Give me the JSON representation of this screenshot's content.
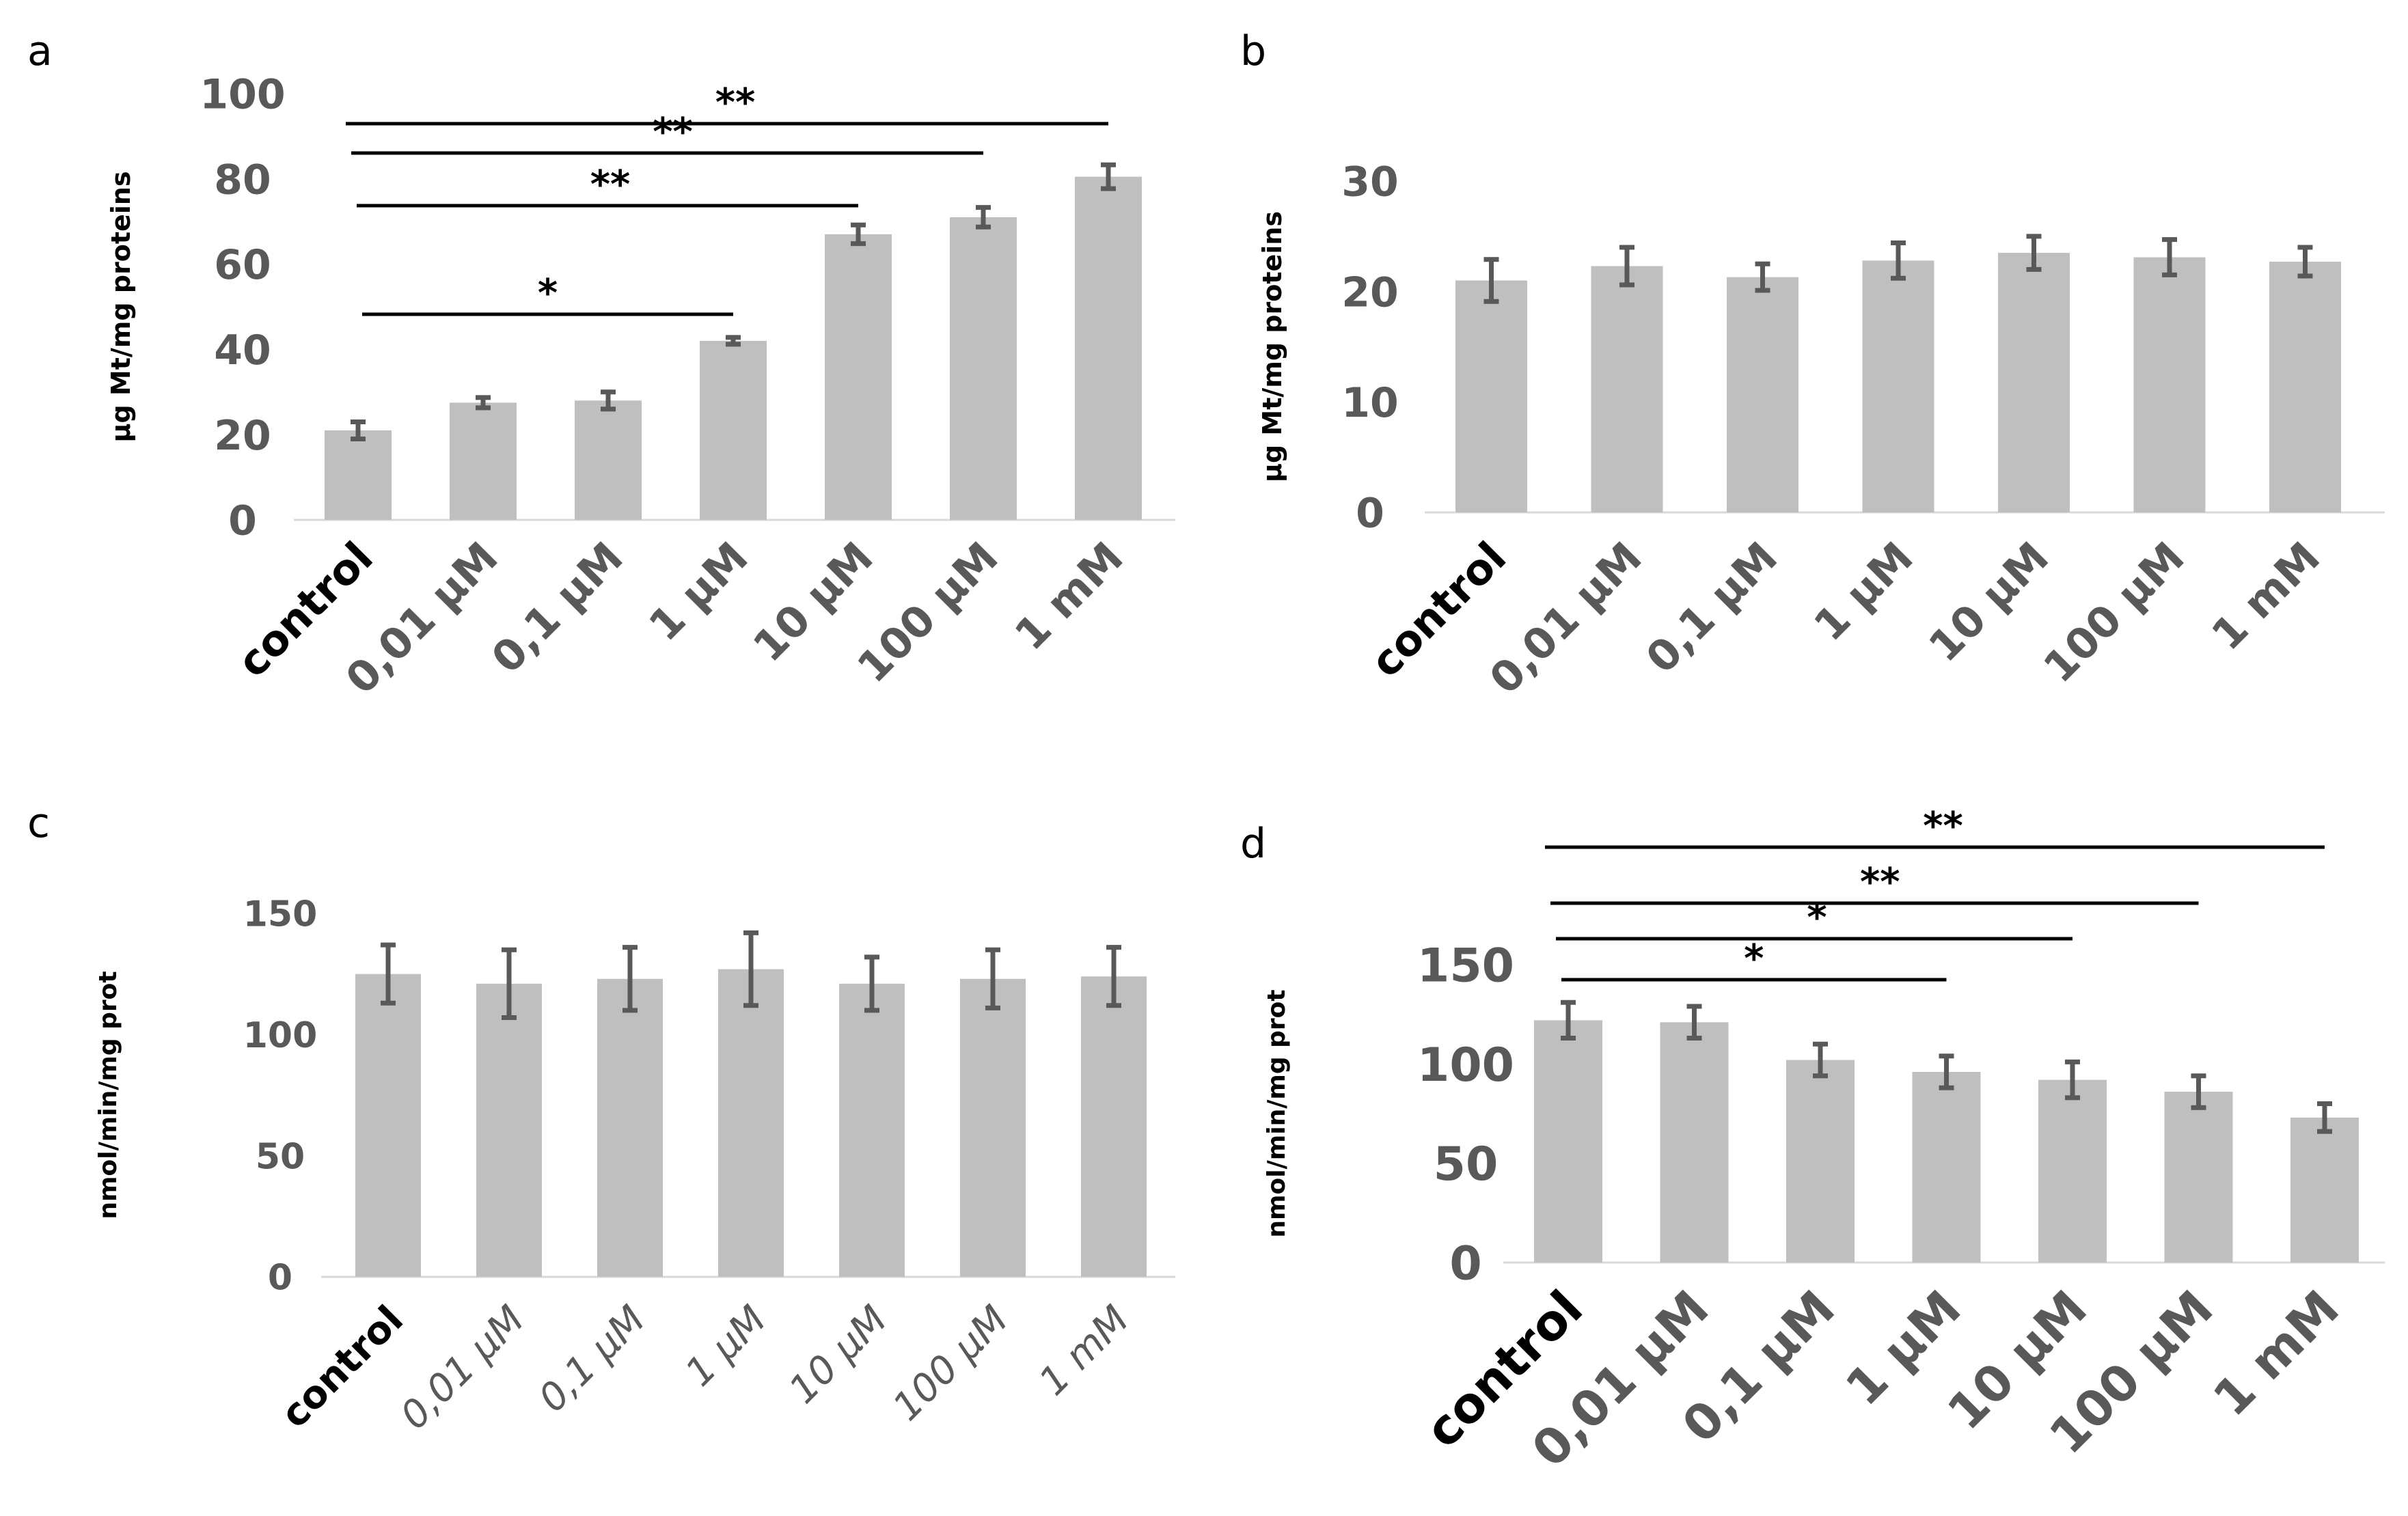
{
  "chart_data": [
    {
      "panel": "a",
      "type": "bar",
      "ylabel": "µg Mt/mg proteins",
      "categories": [
        "control",
        "0,01 µM",
        "0,1 µM",
        "1 µM",
        "10 µM",
        "100 µM",
        "1 mM"
      ],
      "values": [
        21,
        27.5,
        28,
        42,
        67,
        71,
        80.5
      ],
      "errors": [
        2,
        1.2,
        2,
        0.8,
        2.2,
        2.3,
        2.8
      ],
      "ylim": [
        0,
        100
      ],
      "yticks": [
        0,
        20,
        40,
        60,
        80,
        100
      ],
      "significance": [
        {
          "from": 0,
          "to": 3,
          "label": "*"
        },
        {
          "from": 0,
          "to": 4,
          "label": "**"
        },
        {
          "from": 0,
          "to": 5,
          "label": "**"
        },
        {
          "from": 0,
          "to": 6,
          "label": "**"
        }
      ]
    },
    {
      "panel": "b",
      "type": "bar",
      "ylabel": "µg Mt/mg proteins",
      "categories": [
        "control",
        "0,01 µM",
        "0,1 µM",
        "1 µM",
        "10 µM",
        "100 µM",
        "1 mM"
      ],
      "values": [
        21,
        22.3,
        21.3,
        22.8,
        23.5,
        23.1,
        22.7
      ],
      "errors": [
        1.9,
        1.7,
        1.2,
        1.6,
        1.5,
        1.6,
        1.3
      ],
      "ylim": [
        0,
        30
      ],
      "yticks": [
        0,
        10,
        20,
        30
      ],
      "significance": []
    },
    {
      "panel": "c",
      "type": "bar",
      "ylabel": "nmol/min/mg prot",
      "categories": [
        "control",
        "0,01 µM",
        "0,1 µM",
        "1 µM",
        "10 µM",
        "100 µM",
        "1 mM"
      ],
      "values": [
        125,
        121,
        123,
        127,
        121,
        123,
        124
      ],
      "errors": [
        12,
        14,
        13,
        15,
        11,
        12,
        12
      ],
      "ylim": [
        0,
        150
      ],
      "yticks": [
        0,
        50,
        100,
        150
      ],
      "significance": []
    },
    {
      "panel": "d",
      "type": "bar",
      "ylabel": "nmol/min/mg prot",
      "categories": [
        "control",
        "0,01 µM",
        "0,1 µM",
        "1 µM",
        "10 µM",
        "100 µM",
        "1 mM"
      ],
      "values": [
        122,
        121,
        102,
        96,
        92,
        86,
        73
      ],
      "errors": [
        9,
        8,
        8,
        8,
        9,
        8,
        7
      ],
      "ylim": [
        0,
        150
      ],
      "yticks": [
        0,
        50,
        100,
        150
      ],
      "significance": [
        {
          "from": 0,
          "to": 3,
          "label": "*"
        },
        {
          "from": 0,
          "to": 4,
          "label": "*"
        },
        {
          "from": 0,
          "to": 5,
          "label": "**"
        },
        {
          "from": 0,
          "to": 6,
          "label": "**"
        }
      ]
    }
  ],
  "colors": {
    "bar": "#bfbfbf",
    "error": "#595959",
    "axis": "#d9d9d9",
    "tick_text": "#595959",
    "label_text": "#000000"
  }
}
